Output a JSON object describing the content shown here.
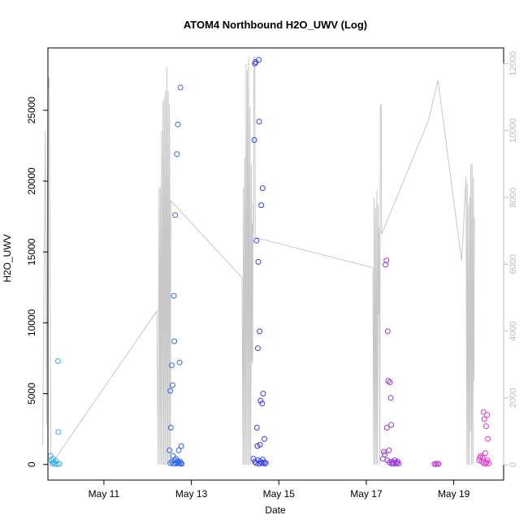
{
  "chart_data": {
    "type": "scatter",
    "title": "ATOM4 Northbound H2O_UWV (Log)",
    "xlabel": "Date",
    "ylabel": "H2O_UWV",
    "x_unit": "day of May",
    "xlim": [
      9.72,
      20.14
    ],
    "ylim": [
      -1100,
      29400
    ],
    "y2lim": [
      -456,
      12470
    ],
    "x_ticks": [
      11,
      13,
      15,
      17,
      19
    ],
    "x_tick_labels": [
      "May 11",
      "May 13",
      "May 15",
      "May 17",
      "May 19"
    ],
    "y_ticks": [
      0,
      5000,
      10000,
      15000,
      20000,
      25000
    ],
    "y_tick_labels": [
      "0",
      "5000",
      "10000",
      "15000",
      "20000",
      "25000"
    ],
    "y2_ticks": [
      0,
      2000,
      4000,
      6000,
      8000,
      10000,
      12000
    ],
    "y2_tick_labels": [
      "0",
      "2000",
      "4000",
      "6000",
      "8000",
      "10000",
      "12000"
    ],
    "grid": false,
    "colors": {
      "axis": "#000000",
      "line": "#c8c8c8",
      "right_axis": "#bdbdbd",
      "point_start": "#33b4f0",
      "point_mid": "#2a3df2",
      "point_end": "#f032c8"
    },
    "points": [
      {
        "x": 9.78,
        "y": 600
      },
      {
        "x": 9.8,
        "y": 300
      },
      {
        "x": 9.82,
        "y": 80
      },
      {
        "x": 9.84,
        "y": 400
      },
      {
        "x": 9.86,
        "y": 150
      },
      {
        "x": 9.88,
        "y": 40
      },
      {
        "x": 9.9,
        "y": 250
      },
      {
        "x": 9.93,
        "y": 30
      },
      {
        "x": 9.95,
        "y": 7300
      },
      {
        "x": 9.96,
        "y": 2300
      },
      {
        "x": 9.98,
        "y": 50
      },
      {
        "x": 12.5,
        "y": 1000
      },
      {
        "x": 12.52,
        "y": 5200
      },
      {
        "x": 12.53,
        "y": 2600
      },
      {
        "x": 12.55,
        "y": 7000
      },
      {
        "x": 12.57,
        "y": 5600
      },
      {
        "x": 12.58,
        "y": 600
      },
      {
        "x": 12.6,
        "y": 11900
      },
      {
        "x": 12.61,
        "y": 8700
      },
      {
        "x": 12.63,
        "y": 17600
      },
      {
        "x": 12.65,
        "y": 400
      },
      {
        "x": 12.67,
        "y": 21900
      },
      {
        "x": 12.69,
        "y": 24000
      },
      {
        "x": 12.71,
        "y": 1000
      },
      {
        "x": 12.73,
        "y": 7200
      },
      {
        "x": 12.75,
        "y": 26600
      },
      {
        "x": 12.77,
        "y": 1300
      },
      {
        "x": 12.52,
        "y": 100
      },
      {
        "x": 12.56,
        "y": 200
      },
      {
        "x": 12.59,
        "y": 50
      },
      {
        "x": 12.62,
        "y": 300
      },
      {
        "x": 12.64,
        "y": 120
      },
      {
        "x": 12.66,
        "y": 60
      },
      {
        "x": 12.68,
        "y": 250
      },
      {
        "x": 12.7,
        "y": 150
      },
      {
        "x": 12.72,
        "y": 80
      },
      {
        "x": 12.74,
        "y": 200
      },
      {
        "x": 12.76,
        "y": 100
      },
      {
        "x": 12.78,
        "y": 40
      },
      {
        "x": 14.42,
        "y": 400
      },
      {
        "x": 14.44,
        "y": 22900
      },
      {
        "x": 14.45,
        "y": 28300
      },
      {
        "x": 14.47,
        "y": 28400
      },
      {
        "x": 14.49,
        "y": 15800
      },
      {
        "x": 14.5,
        "y": 2600
      },
      {
        "x": 14.51,
        "y": 1300
      },
      {
        "x": 14.52,
        "y": 8200
      },
      {
        "x": 14.53,
        "y": 14300
      },
      {
        "x": 14.55,
        "y": 24200
      },
      {
        "x": 14.56,
        "y": 9400
      },
      {
        "x": 14.57,
        "y": 1400
      },
      {
        "x": 14.58,
        "y": 4500
      },
      {
        "x": 14.6,
        "y": 18300
      },
      {
        "x": 14.62,
        "y": 4300
      },
      {
        "x": 14.63,
        "y": 19500
      },
      {
        "x": 14.64,
        "y": 5000
      },
      {
        "x": 14.67,
        "y": 1800
      },
      {
        "x": 14.54,
        "y": 28550
      },
      {
        "x": 14.45,
        "y": 200
      },
      {
        "x": 14.48,
        "y": 100
      },
      {
        "x": 14.52,
        "y": 300
      },
      {
        "x": 14.55,
        "y": 50
      },
      {
        "x": 14.58,
        "y": 200
      },
      {
        "x": 14.61,
        "y": 100
      },
      {
        "x": 14.63,
        "y": 350
      },
      {
        "x": 14.65,
        "y": 150
      },
      {
        "x": 14.68,
        "y": 60
      },
      {
        "x": 14.7,
        "y": 120
      },
      {
        "x": 17.38,
        "y": 400
      },
      {
        "x": 17.4,
        "y": 900
      },
      {
        "x": 17.42,
        "y": 700
      },
      {
        "x": 17.44,
        "y": 14100
      },
      {
        "x": 17.46,
        "y": 14400
      },
      {
        "x": 17.47,
        "y": 2600
      },
      {
        "x": 17.49,
        "y": 9400
      },
      {
        "x": 17.5,
        "y": 5900
      },
      {
        "x": 17.52,
        "y": 1000
      },
      {
        "x": 17.54,
        "y": 5800
      },
      {
        "x": 17.56,
        "y": 4700
      },
      {
        "x": 17.57,
        "y": 2800
      },
      {
        "x": 17.59,
        "y": 200
      },
      {
        "x": 17.61,
        "y": 100
      },
      {
        "x": 17.63,
        "y": 50
      },
      {
        "x": 17.65,
        "y": 300
      },
      {
        "x": 17.68,
        "y": 150
      },
      {
        "x": 17.7,
        "y": 80
      },
      {
        "x": 17.72,
        "y": 200
      },
      {
        "x": 17.74,
        "y": 60
      },
      {
        "x": 17.48,
        "y": 300
      },
      {
        "x": 17.53,
        "y": 150
      },
      {
        "x": 17.58,
        "y": 60
      },
      {
        "x": 18.56,
        "y": 40
      },
      {
        "x": 18.59,
        "y": 30
      },
      {
        "x": 18.62,
        "y": 50
      },
      {
        "x": 18.65,
        "y": 40
      },
      {
        "x": 19.58,
        "y": 300
      },
      {
        "x": 19.6,
        "y": 500
      },
      {
        "x": 19.62,
        "y": 600
      },
      {
        "x": 19.64,
        "y": 200
      },
      {
        "x": 19.66,
        "y": 500
      },
      {
        "x": 19.68,
        "y": 3700
      },
      {
        "x": 19.7,
        "y": 3200
      },
      {
        "x": 19.72,
        "y": 800
      },
      {
        "x": 19.74,
        "y": 2700
      },
      {
        "x": 19.76,
        "y": 3500
      },
      {
        "x": 19.78,
        "y": 1800
      },
      {
        "x": 19.69,
        "y": 100
      },
      {
        "x": 19.73,
        "y": 50
      },
      {
        "x": 19.75,
        "y": 150
      },
      {
        "x": 19.77,
        "y": 300
      },
      {
        "x": 19.8,
        "y": 80
      }
    ],
    "line": [
      [
        9.6,
        600
      ],
      [
        9.66,
        10000
      ],
      [
        9.69,
        1200
      ],
      [
        9.72,
        11200
      ],
      [
        9.75,
        11600
      ],
      [
        9.79,
        0
      ],
      [
        12.21,
        4600
      ],
      [
        12.24,
        0
      ],
      [
        12.26,
        8300
      ],
      [
        12.28,
        0
      ],
      [
        12.29,
        8300
      ],
      [
        12.31,
        0
      ],
      [
        12.32,
        10000
      ],
      [
        12.34,
        0
      ],
      [
        12.35,
        10900
      ],
      [
        12.37,
        0
      ],
      [
        12.38,
        11000
      ],
      [
        12.4,
        0
      ],
      [
        12.41,
        11200
      ],
      [
        12.43,
        0
      ],
      [
        12.44,
        11900
      ],
      [
        12.46,
        0
      ],
      [
        12.47,
        11200
      ],
      [
        12.49,
        0
      ],
      [
        12.5,
        10800
      ],
      [
        12.52,
        0
      ],
      [
        12.53,
        7900
      ],
      [
        14.16,
        5600
      ],
      [
        14.18,
        0
      ],
      [
        14.19,
        8300
      ],
      [
        14.21,
        0
      ],
      [
        14.22,
        9200
      ],
      [
        14.24,
        0
      ],
      [
        14.25,
        12000
      ],
      [
        14.27,
        0
      ],
      [
        14.28,
        11800
      ],
      [
        14.3,
        0
      ],
      [
        14.31,
        12200
      ],
      [
        14.33,
        0
      ],
      [
        14.34,
        10700
      ],
      [
        14.36,
        0
      ],
      [
        14.37,
        9000
      ],
      [
        14.38,
        3100
      ],
      [
        14.39,
        7200
      ],
      [
        14.4,
        3000
      ],
      [
        14.41,
        7800
      ],
      [
        14.42,
        6900
      ],
      [
        14.43,
        12200
      ],
      [
        14.45,
        12200
      ],
      [
        14.46,
        6800
      ],
      [
        17.15,
        5900
      ],
      [
        17.17,
        0
      ],
      [
        17.18,
        8000
      ],
      [
        17.2,
        0
      ],
      [
        17.21,
        7700
      ],
      [
        17.23,
        0
      ],
      [
        17.24,
        8200
      ],
      [
        17.26,
        0
      ],
      [
        17.27,
        7800
      ],
      [
        17.28,
        4500
      ],
      [
        17.29,
        7100
      ],
      [
        17.31,
        0
      ],
      [
        17.32,
        10700
      ],
      [
        17.34,
        10800
      ],
      [
        17.35,
        6900
      ],
      [
        18.42,
        10300
      ],
      [
        18.64,
        11500
      ],
      [
        19.18,
        6100
      ],
      [
        19.28,
        8600
      ],
      [
        19.3,
        0
      ],
      [
        19.31,
        8400
      ],
      [
        19.33,
        0
      ],
      [
        19.34,
        7800
      ],
      [
        19.36,
        0
      ],
      [
        19.37,
        8000
      ],
      [
        19.38,
        1000
      ],
      [
        19.39,
        9000
      ],
      [
        19.41,
        0
      ],
      [
        19.42,
        9000
      ],
      [
        19.44,
        0
      ],
      [
        19.45,
        8600
      ],
      [
        19.46,
        2500
      ],
      [
        19.47,
        7400
      ]
    ]
  }
}
